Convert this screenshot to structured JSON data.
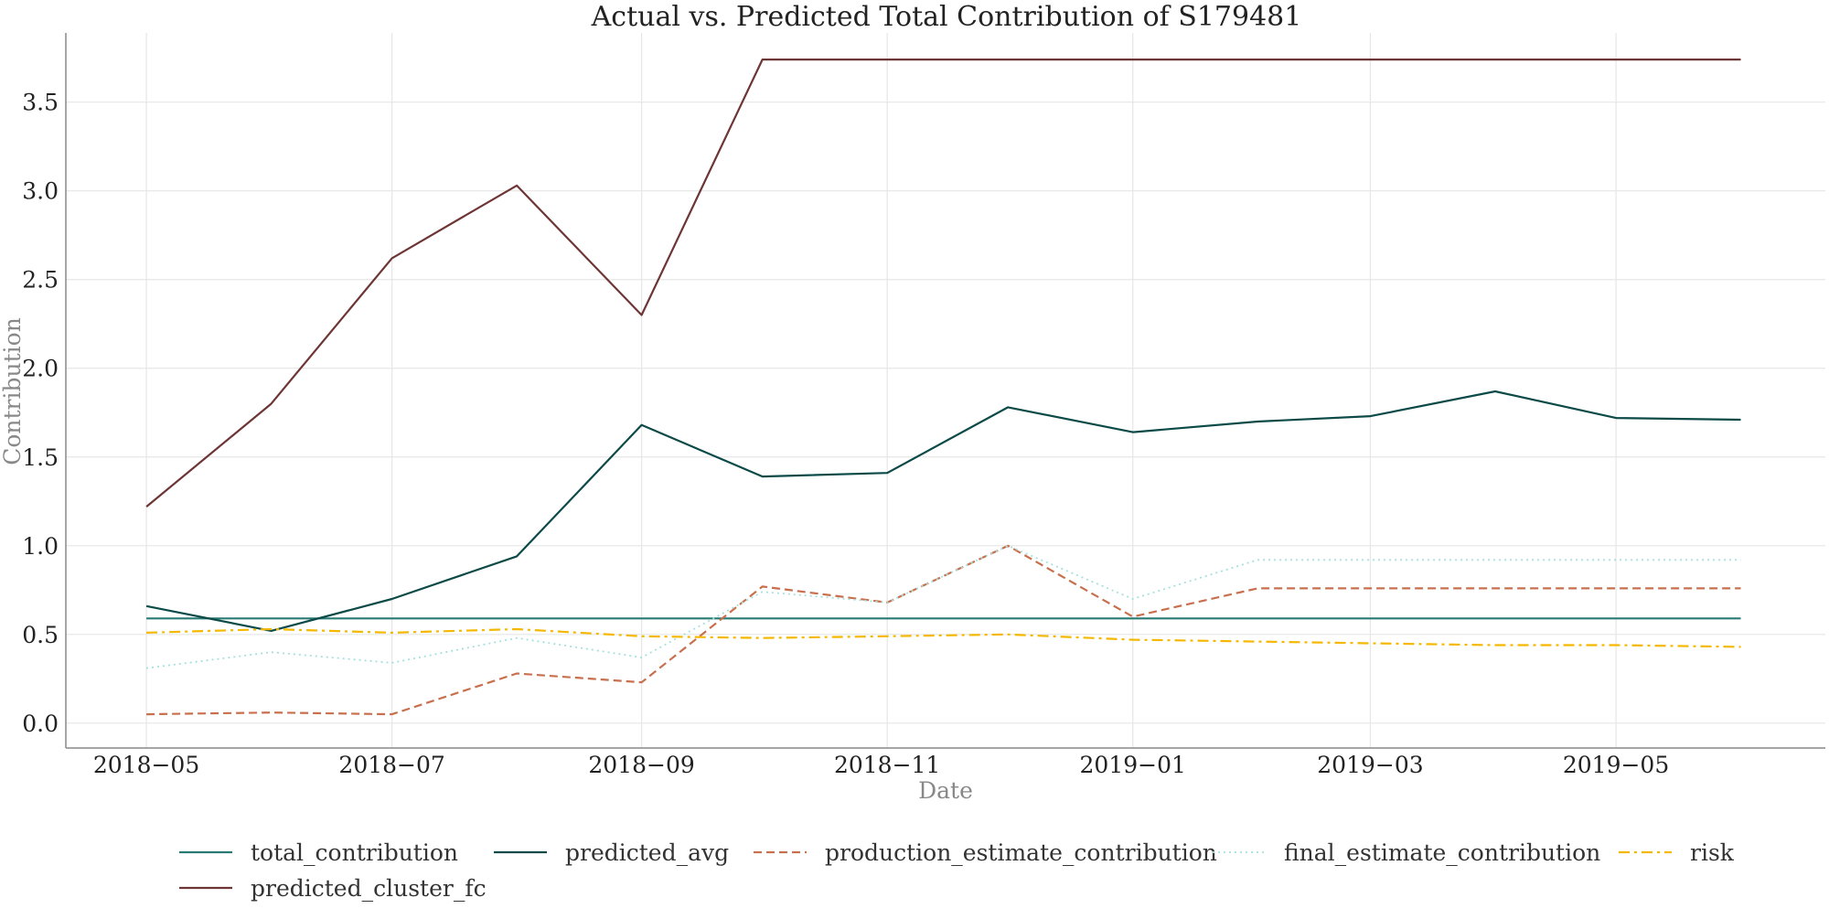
{
  "chart_data": {
    "type": "line",
    "title": "Actual vs. Predicted Total Contribution of S179481",
    "xlabel": "Date",
    "ylabel": "Contribution",
    "x": [
      "2018-05-01",
      "2018-06-01",
      "2018-07-01",
      "2018-08-01",
      "2018-09-01",
      "2018-10-01",
      "2018-11-01",
      "2018-12-01",
      "2019-01-01",
      "2019-02-01",
      "2019-03-01",
      "2019-04-01",
      "2019-05-01",
      "2019-06-01"
    ],
    "x_ticks": [
      "2018-05-01",
      "2018-07-01",
      "2018-09-01",
      "2018-11-01",
      "2019-01-01",
      "2019-03-01",
      "2019-05-01"
    ],
    "x_tick_labels": [
      "2018−05",
      "2018−07",
      "2018−09",
      "2018−11",
      "2019−01",
      "2019−03",
      "2019−05"
    ],
    "xlim": [
      "2018-04-11",
      "2019-06-22"
    ],
    "ylim": [
      -0.14,
      3.89
    ],
    "y_ticks": [
      0.0,
      0.5,
      1.0,
      1.5,
      2.0,
      2.5,
      3.0,
      3.5
    ],
    "y_tick_labels": [
      "0.0",
      "0.5",
      "1.0",
      "1.5",
      "2.0",
      "2.5",
      "3.0",
      "3.5"
    ],
    "grid": true,
    "legend_position": "bottom",
    "series": [
      {
        "name": "total_contribution",
        "color": "#2a7a74",
        "dash": "solid",
        "values": [
          0.59,
          0.59,
          0.59,
          0.59,
          0.59,
          0.59,
          0.59,
          0.59,
          0.59,
          0.59,
          0.59,
          0.59,
          0.59,
          0.59
        ]
      },
      {
        "name": "predicted_avg",
        "color": "#0c4a48",
        "dash": "solid",
        "values": [
          0.66,
          0.52,
          0.7,
          0.94,
          1.68,
          1.39,
          1.41,
          1.78,
          1.64,
          1.7,
          1.73,
          1.87,
          1.72,
          1.71
        ]
      },
      {
        "name": "production_estimate_contribution",
        "color": "#c8704e",
        "dash": "dashed",
        "values": [
          0.05,
          0.06,
          0.05,
          0.28,
          0.23,
          0.77,
          0.68,
          1.0,
          0.6,
          0.76,
          0.76,
          0.76,
          0.76,
          0.76
        ]
      },
      {
        "name": "final_estimate_contribution",
        "color": "#a6e0dc",
        "dash": "dotted",
        "values": [
          0.31,
          0.4,
          0.34,
          0.48,
          0.37,
          0.74,
          0.68,
          1.0,
          0.7,
          0.92,
          0.92,
          0.92,
          0.92,
          0.92
        ]
      },
      {
        "name": "risk",
        "color": "#f5b800",
        "dash": "dashdot",
        "values": [
          0.51,
          0.53,
          0.51,
          0.53,
          0.49,
          0.48,
          0.49,
          0.5,
          0.47,
          0.46,
          0.45,
          0.44,
          0.44,
          0.43
        ]
      },
      {
        "name": "predicted_cluster_fc",
        "color": "#6e3535",
        "dash": "solid",
        "values": [
          1.22,
          1.8,
          2.62,
          3.03,
          2.3,
          3.74,
          3.74,
          3.74,
          3.74,
          3.74,
          3.74,
          3.74,
          3.74,
          3.74
        ]
      }
    ]
  }
}
